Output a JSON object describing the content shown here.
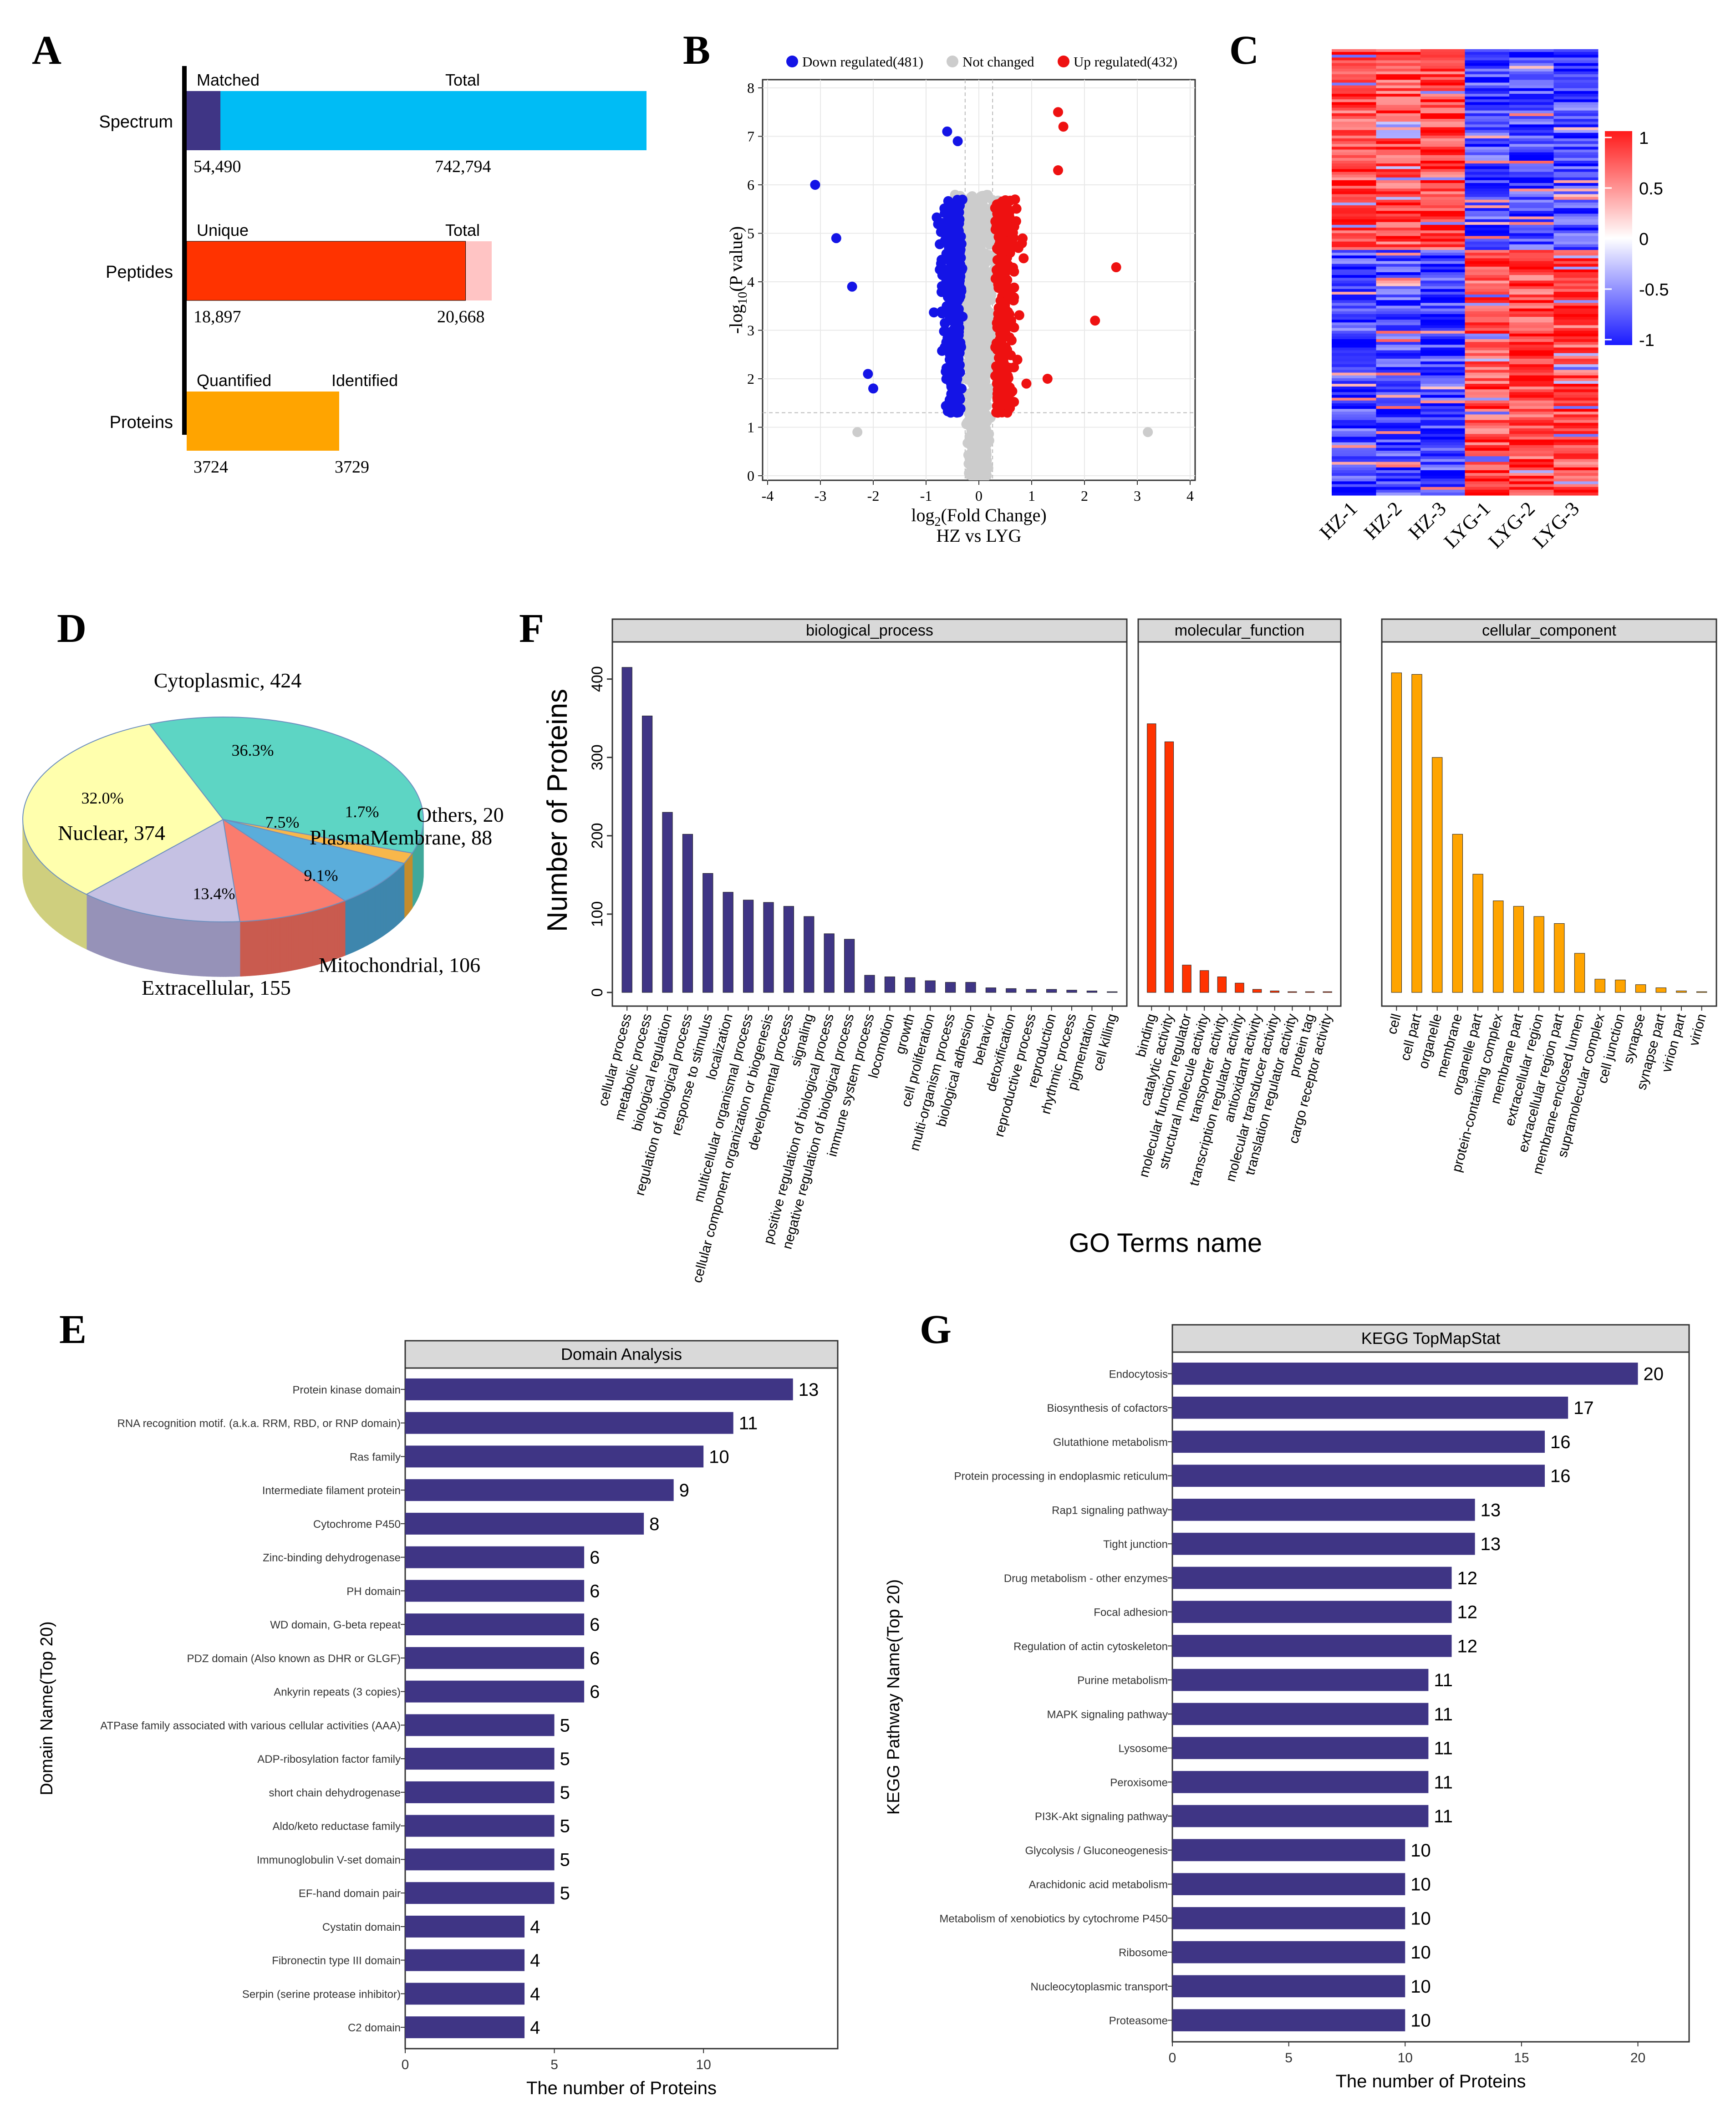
{
  "panel_labels": {
    "a": "A",
    "b": "B",
    "c": "C",
    "d": "D",
    "e": "E",
    "f": "F",
    "g": "G"
  },
  "colors": {
    "purple": "#3f3585",
    "sky": "#00bcf5",
    "red": "#ff3300",
    "pink": "#ffc4c4",
    "orange": "#ffa400",
    "volcano_down": "#1414e6",
    "volcano_up": "#ee1111",
    "volcano_nc": "#cccccc",
    "go_bp": "#3f3585",
    "go_mf": "#ff3300",
    "go_cc": "#ffa400",
    "teal": "#5dd5c4",
    "yellow": "#ffffad",
    "lavender": "#c5c1e3",
    "salmon": "#fa7c6e",
    "blue": "#5aaddb",
    "amber": "#f8b74b"
  },
  "chart_data": [
    {
      "id": "A",
      "type": "bar",
      "title": "",
      "rows": [
        {
          "label": "Spectrum",
          "left_header": "Matched",
          "right_header": "Total",
          "sub": 54490,
          "total": 742794,
          "sub_label": "54,490",
          "total_label": "742,794"
        },
        {
          "label": "Peptides",
          "left_header": "Unique",
          "right_header": "Total",
          "sub": 18897,
          "total": 20668,
          "sub_label": "18,897",
          "total_label": "20,668"
        },
        {
          "label": "Proteins",
          "left_header": "Quantified",
          "right_header": "Identified",
          "sub": 3724,
          "total": 3729,
          "sub_label": "3724",
          "total_label": "3729"
        }
      ]
    },
    {
      "id": "B",
      "type": "scatter",
      "legend": {
        "down": "Down regulated(481)",
        "nc": "Not changed",
        "up": "Up regulated(432)"
      },
      "xlabel_main": "log",
      "xlabel_sub": "2",
      "xlabel_rest": "(Fold Change)",
      "ylabel_pre": "-log",
      "ylabel_sub": "10",
      "ylabel_rest": "(P value)",
      "subtitle": "HZ vs LYG",
      "xlim": [
        -4,
        4
      ],
      "ylim": [
        0,
        8
      ],
      "xticks": [
        "-4",
        "-3",
        "-2",
        "-1",
        "0",
        "1",
        "2",
        "3",
        "4"
      ],
      "yticks": [
        "0",
        "1",
        "2",
        "3",
        "4",
        "5",
        "6",
        "7",
        "8"
      ],
      "outlier_points": [
        [
          -3.1,
          6.0
        ],
        [
          -2.7,
          4.9
        ],
        [
          -2.4,
          3.9
        ],
        [
          -2.1,
          2.1
        ],
        [
          -2.0,
          1.8
        ],
        [
          -0.6,
          7.1
        ],
        [
          -0.4,
          6.9
        ],
        [
          1.5,
          7.5
        ],
        [
          1.6,
          7.2
        ],
        [
          1.5,
          6.3
        ],
        [
          2.6,
          4.3
        ],
        [
          2.2,
          3.2
        ],
        [
          3.2,
          0.9
        ],
        [
          -2.3,
          0.9
        ],
        [
          1.3,
          2.0
        ],
        [
          0.9,
          1.9
        ]
      ]
    },
    {
      "id": "C",
      "type": "heatmap",
      "samples": [
        "HZ-1",
        "HZ-2",
        "HZ-3",
        "LYG-1",
        "LYG-2",
        "LYG-3"
      ],
      "colorbar_ticks": [
        "1",
        "0.5",
        "0",
        "-0.5",
        "-1"
      ],
      "value_range": [
        -1,
        1
      ]
    },
    {
      "id": "D",
      "type": "pie",
      "slices": [
        {
          "name": "Cytoplasmic",
          "count": 424,
          "pct": 36.3,
          "label": "Cytoplasmic, 424",
          "pct_label": "36.3%"
        },
        {
          "name": "Others",
          "count": 20,
          "pct": 1.7,
          "label": "Others, 20",
          "pct_label": "1.7%"
        },
        {
          "name": "PlasmaMembrane",
          "count": 88,
          "pct": 7.5,
          "label": "PlasmaMembrane, 88",
          "pct_label": "7.5%"
        },
        {
          "name": "Mitochondrial",
          "count": 106,
          "pct": 9.1,
          "label": "Mitochondrial, 106",
          "pct_label": "9.1%"
        },
        {
          "name": "Extracellular",
          "count": 155,
          "pct": 13.4,
          "label": "Extracellular, 155",
          "pct_label": "13.4%"
        },
        {
          "name": "Nuclear",
          "count": 374,
          "pct": 32.0,
          "label": "Nuclear, 374",
          "pct_label": "32.0%"
        }
      ]
    },
    {
      "id": "F",
      "type": "bar",
      "ylabel": "Number of Proteins",
      "xlabel": "GO Terms name",
      "ylim": [
        0,
        430
      ],
      "yticks": [
        "0",
        "100",
        "200",
        "300",
        "400"
      ],
      "facets": [
        {
          "title": "biological_process",
          "categories": [
            "cellular process",
            "metabolic process",
            "biological regulation",
            "regulation of biological process",
            "response to stimulus",
            "localization",
            "multicellular organismal process",
            "cellular component organization or biogenesis",
            "developmental process",
            "signaling",
            "positive regulation of biological process",
            "negative regulation of biological process",
            "immune system process",
            "locomotion",
            "growth",
            "cell proliferation",
            "multi-organism process",
            "biological adhesion",
            "behavior",
            "detoxification",
            "reproductive process",
            "reproduction",
            "rhythmic process",
            "pigmentation",
            "cell killing"
          ],
          "values": [
            415,
            353,
            230,
            202,
            152,
            128,
            118,
            115,
            110,
            97,
            75,
            68,
            22,
            20,
            19,
            15,
            13,
            13,
            6,
            5,
            4,
            4,
            3,
            2,
            1
          ]
        },
        {
          "title": "molecular_function",
          "categories": [
            "binding",
            "catalytic activity",
            "molecular function regulator",
            "structural molecule activity",
            "transporter activity",
            "transcription regulator activity",
            "antioxidant activity",
            "molecular transducer activity",
            "translation regulator activity",
            "protein tag",
            "cargo receptor activity"
          ],
          "values": [
            343,
            320,
            35,
            28,
            20,
            12,
            4,
            2,
            1,
            1,
            1
          ]
        },
        {
          "title": "cellular_component",
          "categories": [
            "cell",
            "cell part",
            "organelle",
            "membrane",
            "organelle part",
            "protein-containing complex",
            "membrane part",
            "extracellular region",
            "extracellular region part",
            "membrane-enclosed lumen",
            "supramolecular complex",
            "cell junction",
            "synapse",
            "synapse part",
            "virion part",
            "virion"
          ],
          "values": [
            408,
            406,
            300,
            202,
            151,
            117,
            110,
            97,
            88,
            50,
            17,
            16,
            10,
            6,
            2,
            1
          ]
        }
      ]
    },
    {
      "id": "E",
      "type": "bar",
      "title": "Domain Analysis",
      "xlabel": "The number of Proteins",
      "ylabel": "Domain Name(Top 20)",
      "xlim": [
        0,
        14.5
      ],
      "xticks": [
        "0",
        "5",
        "10"
      ],
      "categories": [
        "Protein kinase domain",
        "RNA recognition motif. (a.k.a. RRM, RBD, or RNP domain)",
        "Ras family",
        "Intermediate filament protein",
        "Cytochrome P450",
        "Zinc-binding dehydrogenase",
        "PH domain",
        "WD domain, G-beta repeat",
        "PDZ domain (Also known as DHR or GLGF)",
        "Ankyrin repeats (3 copies)",
        "ATPase family associated with various cellular activities (AAA)",
        "ADP-ribosylation factor family",
        "short chain dehydrogenase",
        "Aldo/keto reductase family",
        "Immunoglobulin V-set domain",
        "EF-hand domain pair",
        "Cystatin domain",
        "Fibronectin type III domain",
        "Serpin (serine protease inhibitor)",
        "C2 domain"
      ],
      "values": [
        13,
        11,
        10,
        9,
        8,
        6,
        6,
        6,
        6,
        6,
        5,
        5,
        5,
        5,
        5,
        5,
        4,
        4,
        4,
        4
      ]
    },
    {
      "id": "G",
      "type": "bar",
      "title": "KEGG TopMapStat",
      "xlabel": "The number of Proteins",
      "ylabel": "KEGG Pathway Name(Top 20)",
      "xlim": [
        0,
        22.2
      ],
      "xticks": [
        "0",
        "5",
        "10",
        "15",
        "20"
      ],
      "categories": [
        "Endocytosis",
        "Biosynthesis of cofactors",
        "Glutathione metabolism",
        "Protein processing in endoplasmic reticulum",
        "Rap1 signaling pathway",
        "Tight junction",
        "Drug metabolism - other enzymes",
        "Focal adhesion",
        "Regulation of actin cytoskeleton",
        "Purine metabolism",
        "MAPK signaling pathway",
        "Lysosome",
        "Peroxisome",
        "PI3K-Akt signaling pathway",
        "Glycolysis / Gluconeogenesis",
        "Arachidonic acid metabolism",
        "Metabolism of xenobiotics by cytochrome P450",
        "Ribosome",
        "Nucleocytoplasmic transport",
        "Proteasome"
      ],
      "values": [
        20,
        17,
        16,
        16,
        13,
        13,
        12,
        12,
        12,
        11,
        11,
        11,
        11,
        11,
        10,
        10,
        10,
        10,
        10,
        10
      ]
    }
  ]
}
